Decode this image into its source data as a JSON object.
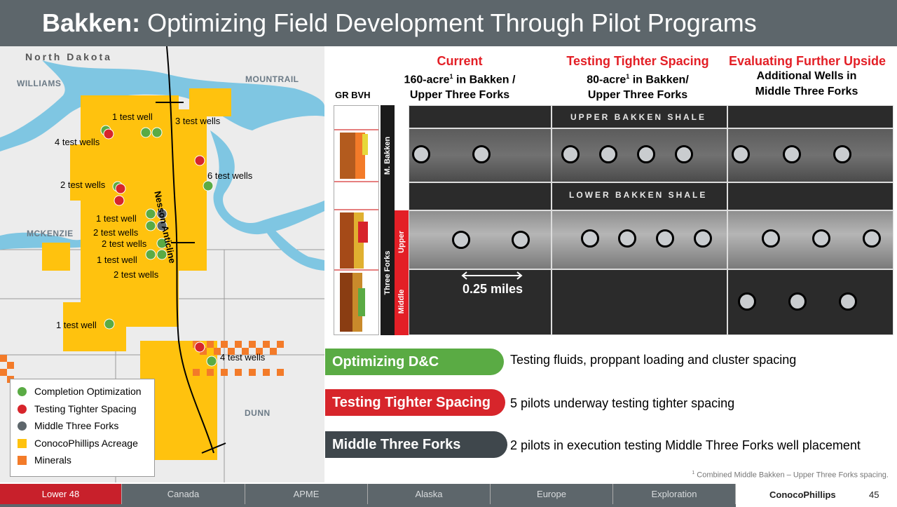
{
  "header": {
    "title_bold": "Bakken:",
    "title_rest": " Optimizing Field Development Through Pilot Programs"
  },
  "map": {
    "state": "North Dakota",
    "regions": [
      "WILLIAMS",
      "MOUNTRAIL",
      "MCKENZIE",
      "DUNN"
    ],
    "anticline": "Nesson Anticline",
    "labels": [
      "1 test well",
      "3 test wells",
      "4 test wells",
      "6 test wells",
      "2 test wells",
      "1 test well",
      "2 test wells",
      "2 test wells",
      "1 test well",
      "2 test wells",
      "1 test well",
      "4 test wells"
    ],
    "legend": [
      {
        "label": "Completion Optimization",
        "color": "#5aab44"
      },
      {
        "label": "Testing Tighter Spacing",
        "color": "#d7252b"
      },
      {
        "label": "Middle Three Forks",
        "color": "#5d666b"
      },
      {
        "label": "ConocoPhillips Acreage",
        "color": "#ffc20e"
      },
      {
        "label": "Minerals",
        "color": "#f37b29"
      }
    ]
  },
  "columns": [
    {
      "heading": "Current",
      "line1a": "160-acre",
      "sup": "1",
      "line1b": " in Bakken /",
      "line2": "Upper Three Forks"
    },
    {
      "heading": "Testing Tighter Spacing",
      "line1a": "80-acre",
      "sup": "1",
      "line1b": " in Bakken/",
      "line2": "Upper Three Forks"
    },
    {
      "heading": "Evaluating Further Upside",
      "line1a": "Additional Wells in",
      "sup": "",
      "line1b": "",
      "line2": "Middle Three Forks"
    }
  ],
  "cross_section": {
    "log_label": "GR BVH",
    "zone_bakken": "M. Bakken",
    "zone_forks": "Three Forks",
    "zone_upper": "Upper",
    "zone_middle": "Middle",
    "upper_shale": "UPPER BAKKEN SHALE",
    "lower_shale": "LOWER BAKKEN SHALE",
    "distance": "0.25 miles"
  },
  "programs": [
    {
      "label": "Optimizing D&C",
      "desc": "Testing fluids, proppant loading and cluster spacing",
      "color": "#5aab44"
    },
    {
      "label": "Testing Tighter Spacing",
      "desc": "5 pilots underway testing tighter spacing",
      "color": "#d7252b"
    },
    {
      "label": "Middle Three Forks",
      "desc": "2 pilots in execution testing Middle Three Forks well placement",
      "color": "#3f474c"
    }
  ],
  "footnote": {
    "sup": "1",
    "text": " Combined Middle Bakken – Upper Three Forks spacing."
  },
  "footer": {
    "tabs": [
      "Lower 48",
      "Canada",
      "APME",
      "Alaska",
      "Europe",
      "Exploration"
    ],
    "logo": "ConocoPhillips",
    "page": "45"
  }
}
